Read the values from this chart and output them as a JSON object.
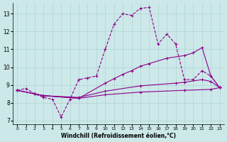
{
  "xlabel": "Windchill (Refroidissement éolien,°C)",
  "bg_color": "#cce8e8",
  "line_color": "#8b008b",
  "xlim": [
    -0.5,
    23.5
  ],
  "ylim": [
    6.8,
    13.6
  ],
  "yticks": [
    7,
    8,
    9,
    10,
    11,
    12,
    13
  ],
  "xticks": [
    0,
    1,
    2,
    3,
    4,
    5,
    6,
    7,
    8,
    9,
    10,
    11,
    12,
    13,
    14,
    15,
    16,
    17,
    18,
    19,
    20,
    21,
    22,
    23
  ],
  "lines": [
    {
      "style": "--",
      "x": [
        0,
        1,
        2,
        3,
        4,
        5,
        6,
        7,
        8,
        9,
        10,
        11,
        12,
        13,
        14,
        15,
        16,
        17,
        18,
        19,
        20,
        21,
        22,
        23
      ],
      "y": [
        8.7,
        8.8,
        8.5,
        8.3,
        8.2,
        7.2,
        8.2,
        9.3,
        9.4,
        9.5,
        11.0,
        12.4,
        13.0,
        12.9,
        13.3,
        13.35,
        11.3,
        11.85,
        11.3,
        9.3,
        9.3,
        9.8,
        9.5,
        8.85
      ]
    },
    {
      "style": "-",
      "x": [
        0,
        2,
        3,
        7,
        10,
        11,
        12,
        13,
        14,
        15,
        17,
        19,
        20,
        21,
        22,
        23
      ],
      "y": [
        8.7,
        8.5,
        8.4,
        8.25,
        9.1,
        9.35,
        9.6,
        9.8,
        10.05,
        10.2,
        10.5,
        10.65,
        10.8,
        11.1,
        9.5,
        8.85
      ]
    },
    {
      "style": "-",
      "x": [
        0,
        2,
        3,
        7,
        10,
        14,
        18,
        19,
        21,
        22,
        23
      ],
      "y": [
        8.7,
        8.5,
        8.4,
        8.3,
        8.65,
        8.95,
        9.1,
        9.15,
        9.3,
        9.2,
        8.85
      ]
    },
    {
      "style": "-",
      "x": [
        0,
        2,
        3,
        7,
        10,
        14,
        19,
        22,
        23
      ],
      "y": [
        8.7,
        8.5,
        8.4,
        8.25,
        8.45,
        8.6,
        8.7,
        8.75,
        8.85
      ]
    }
  ]
}
